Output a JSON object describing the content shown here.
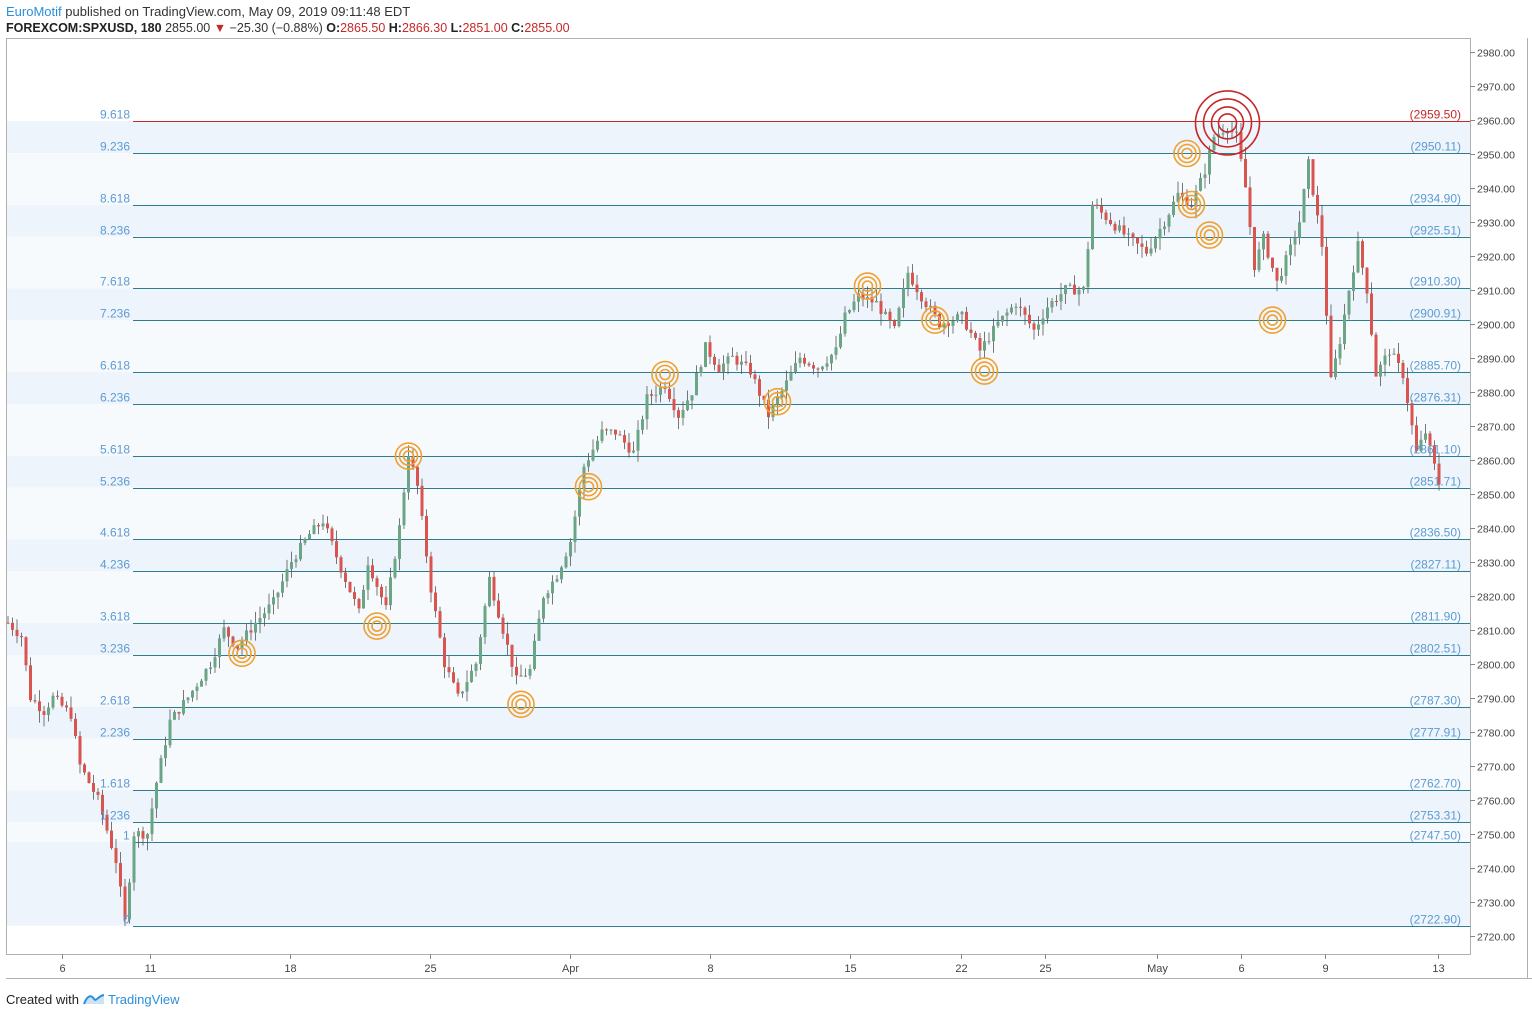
{
  "header": {
    "author": "EuroMotif",
    "published_text": "published on TradingView.com, May 09, 2019 09:11:48 EDT",
    "symbol": "FOREXCOM:SPXUSD, 180",
    "last": "2855.00",
    "arrow": "▼",
    "change": "−25.30 (−0.88%)",
    "o_label": "O:",
    "o_value": "2865.50",
    "h_label": "H:",
    "h_value": "2866.30",
    "l_label": "L:",
    "l_value": "2851.00",
    "c_label": "C:",
    "c_value": "2855.00"
  },
  "footer": {
    "created_with": "Created with",
    "brand": "TradingView",
    "logo_icon": "tradingview-logo-icon"
  },
  "colors": {
    "up": "#6aa585",
    "down": "#d9534f",
    "fib_line": "#2e7d8c",
    "fib_top": "#c62828",
    "fib_text": "#5b9bd5",
    "band": "#eef4fb",
    "circle": "#f0a030",
    "circle_top": "#c62828"
  },
  "chart_data": {
    "type": "candlestick",
    "symbol": "FOREXCOM:SPXUSD",
    "interval": "180",
    "ylim": [
      2716,
      2982
    ],
    "y_ticks": [
      2720,
      2730,
      2740,
      2750,
      2760,
      2770,
      2780,
      2790,
      2800,
      2810,
      2820,
      2830,
      2840,
      2850,
      2860,
      2870,
      2880,
      2890,
      2900,
      2910,
      2920,
      2930,
      2940,
      2950,
      2960,
      2970,
      2980
    ],
    "x_ticks": [
      "6",
      "11",
      "18",
      "25",
      "Apr",
      "8",
      "15",
      "22",
      "25",
      "May",
      "6",
      "9",
      "13"
    ],
    "grid": false,
    "fib_levels": [
      {
        "ratio": "9.618",
        "price": 2959.5,
        "label": "(2959.50)"
      },
      {
        "ratio": "9.236",
        "price": 2950.11,
        "label": "(2950.11)"
      },
      {
        "ratio": "8.618",
        "price": 2934.9,
        "label": "(2934.90)"
      },
      {
        "ratio": "8.236",
        "price": 2925.51,
        "label": "(2925.51)"
      },
      {
        "ratio": "7.618",
        "price": 2910.3,
        "label": "(2910.30)"
      },
      {
        "ratio": "7.236",
        "price": 2900.91,
        "label": "(2900.91)"
      },
      {
        "ratio": "6.618",
        "price": 2885.7,
        "label": "(2885.70)"
      },
      {
        "ratio": "6.236",
        "price": 2876.31,
        "label": "(2876.31)"
      },
      {
        "ratio": "5.618",
        "price": 2861.1,
        "label": "(2861.10)"
      },
      {
        "ratio": "5.236",
        "price": 2851.71,
        "label": "(2851.71)"
      },
      {
        "ratio": "4.618",
        "price": 2836.5,
        "label": "(2836.50)"
      },
      {
        "ratio": "4.236",
        "price": 2827.11,
        "label": "(2827.11)"
      },
      {
        "ratio": "3.618",
        "price": 2811.9,
        "label": "(2811.90)"
      },
      {
        "ratio": "3.236",
        "price": 2802.51,
        "label": "(2802.51)"
      },
      {
        "ratio": "2.618",
        "price": 2787.3,
        "label": "(2787.30)"
      },
      {
        "ratio": "2.236",
        "price": 2777.91,
        "label": "(2777.91)"
      },
      {
        "ratio": "1.618",
        "price": 2762.7,
        "label": "(2762.70)"
      },
      {
        "ratio": "1.236",
        "price": 2753.31,
        "label": "(2753.31)"
      },
      {
        "ratio": "1",
        "price": 2747.5,
        "label": "(2747.50)"
      },
      {
        "ratio": "0",
        "price": 2722.9,
        "label": "(2722.90)"
      }
    ],
    "touch_points": [
      {
        "bar": 52,
        "price": 2803
      },
      {
        "bar": 82,
        "price": 2811
      },
      {
        "bar": 89,
        "price": 2861
      },
      {
        "bar": 114,
        "price": 2788
      },
      {
        "bar": 129,
        "price": 2852
      },
      {
        "bar": 146,
        "price": 2885
      },
      {
        "bar": 171,
        "price": 2877
      },
      {
        "bar": 191,
        "price": 2911
      },
      {
        "bar": 206,
        "price": 2901
      },
      {
        "bar": 217,
        "price": 2886
      },
      {
        "bar": 262,
        "price": 2950
      },
      {
        "bar": 263,
        "price": 2935
      },
      {
        "bar": 267,
        "price": 2926
      },
      {
        "bar": 281,
        "price": 2901
      }
    ],
    "top_point": {
      "bar": 271,
      "price": 2959
    }
  }
}
